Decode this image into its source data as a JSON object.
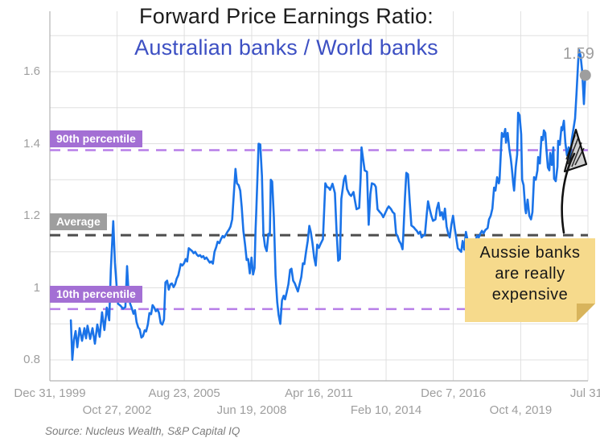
{
  "title": {
    "line1": "Forward Price Earnings Ratio:",
    "line2": "Australian banks / World banks"
  },
  "annotations": {
    "percentile_90": {
      "label": "90th percentile",
      "value": 1.382
    },
    "average": {
      "label": "Average",
      "value": 1.146
    },
    "percentile_10": {
      "label": "10th percentile",
      "value": 0.941
    },
    "last_value_label": "1.59",
    "sticky_note": {
      "lines": [
        "Aussie banks",
        "are really",
        "expensive"
      ]
    }
  },
  "source": "Source: Nucleus Wealth, S&P Capital IQ",
  "colors": {
    "line_blue": "#1a73e8",
    "subtitle_blue": "#3d50c3",
    "purple_badge": "#a36fd4",
    "purple_dash": "#b77ee8",
    "average_badge": "#9e9e9e",
    "average_dash": "#4d4d4d",
    "grid": "#e0e0e0",
    "axis": "#b3b3b3",
    "tick_text": "#9e9e9e",
    "end_dot": "#9e9e9e",
    "note_bg": "#f6da8c",
    "note_fold": "#d8b45c",
    "arrow_black": "#111111"
  },
  "chart_data": {
    "type": "line",
    "series_name": "Forward PE ratio: Australian banks / World banks",
    "legend": "none",
    "grid": "on",
    "x_axis": {
      "range_years": [
        2000.0,
        2022.58
      ],
      "gridline_years": [
        2000.0,
        2002.82,
        2005.64,
        2008.47,
        2011.29,
        2014.11,
        2016.93,
        2019.76,
        2022.58
      ],
      "ticks": [
        {
          "label": "Dec 31, 1999",
          "t": 2000.0,
          "row": 1
        },
        {
          "label": "Oct 27, 2002",
          "t": 2002.82,
          "row": 2
        },
        {
          "label": "Aug 23, 2005",
          "t": 2005.64,
          "row": 1
        },
        {
          "label": "Jun 19, 2008",
          "t": 2008.47,
          "row": 2
        },
        {
          "label": "Apr 16, 2011",
          "t": 2011.29,
          "row": 1
        },
        {
          "label": "Feb 10, 2014",
          "t": 2014.11,
          "row": 2
        },
        {
          "label": "Dec 7, 2016",
          "t": 2016.93,
          "row": 1
        },
        {
          "label": "Oct 4, 2019",
          "t": 2019.76,
          "row": 2
        },
        {
          "label": "Jul 31,",
          "t": 2022.58,
          "row": 1
        }
      ]
    },
    "y_axis": {
      "ticks": [
        {
          "label": "1.6",
          "v": 1.6
        },
        {
          "label": "1.4",
          "v": 1.4
        },
        {
          "label": "1.2",
          "v": 1.2
        },
        {
          "label": "1",
          "v": 1.0
        },
        {
          "label": "0.8",
          "v": 0.8
        }
      ],
      "gridline_values": [
        0.8,
        0.9,
        1.0,
        1.1,
        1.2,
        1.3,
        1.4,
        1.5,
        1.6,
        1.7
      ],
      "range": [
        0.8,
        1.7
      ]
    },
    "ref_lines": [
      {
        "name": "percentile-90",
        "value": 1.382,
        "color": "#b77ee8",
        "width": 2.5
      },
      {
        "name": "average",
        "value": 1.146,
        "color": "#4d4d4d",
        "width": 3
      },
      {
        "name": "percentile-10",
        "value": 0.941,
        "color": "#b77ee8",
        "width": 2.5
      }
    ],
    "end_dot": {
      "t": 2022.47,
      "v": 1.59
    },
    "points": [
      [
        2000.88,
        0.91
      ],
      [
        2000.94,
        0.8
      ],
      [
        2001.01,
        0.855
      ],
      [
        2001.08,
        0.88
      ],
      [
        2001.15,
        0.835
      ],
      [
        2001.25,
        0.888
      ],
      [
        2001.35,
        0.853
      ],
      [
        2001.45,
        0.888
      ],
      [
        2001.52,
        0.86
      ],
      [
        2001.58,
        0.895
      ],
      [
        2001.69,
        0.858
      ],
      [
        2001.79,
        0.888
      ],
      [
        2001.89,
        0.845
      ],
      [
        2001.99,
        0.898
      ],
      [
        2002.09,
        0.864
      ],
      [
        2002.19,
        0.932
      ],
      [
        2002.29,
        0.883
      ],
      [
        2002.39,
        0.945
      ],
      [
        2002.49,
        0.91
      ],
      [
        2002.56,
        1.05
      ],
      [
        2002.66,
        1.185
      ],
      [
        2002.73,
        1.07
      ],
      [
        2002.8,
        1.005
      ],
      [
        2002.86,
        0.956
      ],
      [
        2002.97,
        0.95
      ],
      [
        2003.07,
        0.942
      ],
      [
        2003.17,
        0.947
      ],
      [
        2003.24,
        1.06
      ],
      [
        2003.3,
        0.988
      ],
      [
        2003.37,
        0.956
      ],
      [
        2003.44,
        0.943
      ],
      [
        2003.51,
        0.928
      ],
      [
        2003.57,
        0.938
      ],
      [
        2003.64,
        0.905
      ],
      [
        2003.71,
        0.89
      ],
      [
        2003.77,
        0.885
      ],
      [
        2003.84,
        0.862
      ],
      [
        2003.91,
        0.866
      ],
      [
        2003.98,
        0.882
      ],
      [
        2004.04,
        0.879
      ],
      [
        2004.11,
        0.898
      ],
      [
        2004.18,
        0.93
      ],
      [
        2004.25,
        0.927
      ],
      [
        2004.31,
        0.952
      ],
      [
        2004.38,
        0.945
      ],
      [
        2004.45,
        0.935
      ],
      [
        2004.52,
        0.94
      ],
      [
        2004.58,
        0.93
      ],
      [
        2004.65,
        0.902
      ],
      [
        2004.72,
        0.898
      ],
      [
        2004.79,
        0.912
      ],
      [
        2004.85,
        1.015
      ],
      [
        2004.92,
        1.02
      ],
      [
        2004.99,
        0.995
      ],
      [
        2005.06,
        1.01
      ],
      [
        2005.12,
        1.012
      ],
      [
        2005.19,
        1.002
      ],
      [
        2005.26,
        1.01
      ],
      [
        2005.32,
        1.025
      ],
      [
        2005.39,
        1.035
      ],
      [
        2005.49,
        1.066
      ],
      [
        2005.56,
        1.062
      ],
      [
        2005.63,
        1.068
      ],
      [
        2005.7,
        1.08
      ],
      [
        2005.76,
        1.073
      ],
      [
        2005.83,
        1.11
      ],
      [
        2005.9,
        1.106
      ],
      [
        2005.97,
        1.102
      ],
      [
        2006.03,
        1.096
      ],
      [
        2006.1,
        1.1
      ],
      [
        2006.17,
        1.092
      ],
      [
        2006.23,
        1.088
      ],
      [
        2006.3,
        1.091
      ],
      [
        2006.37,
        1.085
      ],
      [
        2006.44,
        1.088
      ],
      [
        2006.5,
        1.08
      ],
      [
        2006.57,
        1.084
      ],
      [
        2006.64,
        1.077
      ],
      [
        2006.71,
        1.07
      ],
      [
        2006.77,
        1.073
      ],
      [
        2006.84,
        1.067
      ],
      [
        2006.91,
        1.1
      ],
      [
        2006.98,
        1.113
      ],
      [
        2007.04,
        1.128
      ],
      [
        2007.11,
        1.124
      ],
      [
        2007.18,
        1.135
      ],
      [
        2007.25,
        1.144
      ],
      [
        2007.31,
        1.14
      ],
      [
        2007.38,
        1.147
      ],
      [
        2007.45,
        1.155
      ],
      [
        2007.52,
        1.162
      ],
      [
        2007.58,
        1.17
      ],
      [
        2007.65,
        1.19
      ],
      [
        2007.72,
        1.26
      ],
      [
        2007.79,
        1.33
      ],
      [
        2007.85,
        1.29
      ],
      [
        2007.92,
        1.285
      ],
      [
        2007.99,
        1.27
      ],
      [
        2008.05,
        1.225
      ],
      [
        2008.12,
        1.158
      ],
      [
        2008.19,
        1.12
      ],
      [
        2008.26,
        1.077
      ],
      [
        2008.32,
        1.08
      ],
      [
        2008.39,
        1.04
      ],
      [
        2008.46,
        1.084
      ],
      [
        2008.53,
        1.037
      ],
      [
        2008.59,
        1.055
      ],
      [
        2008.63,
        1.158
      ],
      [
        2008.66,
        1.21
      ],
      [
        2008.73,
        1.345
      ],
      [
        2008.76,
        1.4
      ],
      [
        2008.83,
        1.398
      ],
      [
        2008.9,
        1.31
      ],
      [
        2008.96,
        1.15
      ],
      [
        2009.03,
        1.115
      ],
      [
        2009.1,
        1.102
      ],
      [
        2009.17,
        1.15
      ],
      [
        2009.23,
        1.146
      ],
      [
        2009.27,
        1.3
      ],
      [
        2009.33,
        1.295
      ],
      [
        2009.4,
        1.196
      ],
      [
        2009.47,
        1.035
      ],
      [
        2009.54,
        0.96
      ],
      [
        2009.6,
        0.925
      ],
      [
        2009.67,
        0.9
      ],
      [
        2009.74,
        0.965
      ],
      [
        2009.81,
        0.978
      ],
      [
        2009.87,
        0.968
      ],
      [
        2009.94,
        0.988
      ],
      [
        2010.01,
        1.01
      ],
      [
        2010.08,
        1.05
      ],
      [
        2010.14,
        1.053
      ],
      [
        2010.21,
        1.02
      ],
      [
        2010.28,
        1.012
      ],
      [
        2010.35,
        1.0
      ],
      [
        2010.41,
        0.99
      ],
      [
        2010.48,
        1.01
      ],
      [
        2010.55,
        1.03
      ],
      [
        2010.62,
        1.068
      ],
      [
        2010.68,
        1.066
      ],
      [
        2010.75,
        1.1
      ],
      [
        2010.82,
        1.13
      ],
      [
        2010.89,
        1.172
      ],
      [
        2010.95,
        1.155
      ],
      [
        2011.02,
        1.124
      ],
      [
        2011.09,
        1.084
      ],
      [
        2011.16,
        1.062
      ],
      [
        2011.22,
        1.12
      ],
      [
        2011.29,
        1.111
      ],
      [
        2011.36,
        1.122
      ],
      [
        2011.46,
        1.135
      ],
      [
        2011.56,
        1.29
      ],
      [
        2011.63,
        1.28
      ],
      [
        2011.7,
        1.278
      ],
      [
        2011.76,
        1.272
      ],
      [
        2011.86,
        1.289
      ],
      [
        2011.96,
        1.263
      ],
      [
        2012.03,
        1.16
      ],
      [
        2012.1,
        1.075
      ],
      [
        2012.17,
        1.08
      ],
      [
        2012.23,
        1.247
      ],
      [
        2012.34,
        1.3
      ],
      [
        2012.4,
        1.311
      ],
      [
        2012.47,
        1.274
      ],
      [
        2012.57,
        1.26
      ],
      [
        2012.64,
        1.255
      ],
      [
        2012.74,
        1.266
      ],
      [
        2012.81,
        1.24
      ],
      [
        2012.87,
        1.218
      ],
      [
        2012.98,
        1.222
      ],
      [
        2013.04,
        1.3
      ],
      [
        2013.08,
        1.39
      ],
      [
        2013.14,
        1.36
      ],
      [
        2013.21,
        1.326
      ],
      [
        2013.31,
        1.322
      ],
      [
        2013.38,
        1.175
      ],
      [
        2013.45,
        1.26
      ],
      [
        2013.51,
        1.29
      ],
      [
        2013.62,
        1.287
      ],
      [
        2013.68,
        1.28
      ],
      [
        2013.75,
        1.218
      ],
      [
        2013.85,
        1.21
      ],
      [
        2013.92,
        1.205
      ],
      [
        2013.99,
        1.196
      ],
      [
        2014.09,
        1.21
      ],
      [
        2014.16,
        1.22
      ],
      [
        2014.22,
        1.226
      ],
      [
        2014.32,
        1.218
      ],
      [
        2014.39,
        1.21
      ],
      [
        2014.46,
        1.206
      ],
      [
        2014.53,
        1.15
      ],
      [
        2014.59,
        1.144
      ],
      [
        2014.66,
        1.13
      ],
      [
        2014.73,
        1.122
      ],
      [
        2014.8,
        1.107
      ],
      [
        2014.83,
        1.144
      ],
      [
        2014.9,
        1.25
      ],
      [
        2014.96,
        1.319
      ],
      [
        2015.03,
        1.315
      ],
      [
        2015.1,
        1.24
      ],
      [
        2015.17,
        1.173
      ],
      [
        2015.27,
        1.168
      ],
      [
        2015.33,
        1.163
      ],
      [
        2015.4,
        1.158
      ],
      [
        2015.47,
        1.15
      ],
      [
        2015.54,
        1.156
      ],
      [
        2015.6,
        1.14
      ],
      [
        2015.67,
        1.145
      ],
      [
        2015.74,
        1.147
      ],
      [
        2015.81,
        1.2
      ],
      [
        2015.87,
        1.24
      ],
      [
        2015.94,
        1.218
      ],
      [
        2016.01,
        1.2
      ],
      [
        2016.08,
        1.186
      ],
      [
        2016.18,
        1.19
      ],
      [
        2016.24,
        1.22
      ],
      [
        2016.31,
        1.236
      ],
      [
        2016.38,
        1.2
      ],
      [
        2016.45,
        1.21
      ],
      [
        2016.51,
        1.19
      ],
      [
        2016.58,
        1.22
      ],
      [
        2016.65,
        1.17
      ],
      [
        2016.72,
        1.15
      ],
      [
        2016.78,
        1.14
      ],
      [
        2016.85,
        1.175
      ],
      [
        2016.92,
        1.2
      ],
      [
        2016.99,
        1.165
      ],
      [
        2017.05,
        1.14
      ],
      [
        2017.12,
        1.11
      ],
      [
        2017.19,
        1.105
      ],
      [
        2017.26,
        1.1
      ],
      [
        2017.32,
        1.13
      ],
      [
        2017.39,
        1.106
      ],
      [
        2017.46,
        1.155
      ],
      [
        2017.52,
        1.135
      ],
      [
        2017.59,
        1.1
      ],
      [
        2017.66,
        1.075
      ],
      [
        2017.73,
        1.065
      ],
      [
        2017.79,
        1.09
      ],
      [
        2017.86,
        1.13
      ],
      [
        2017.93,
        1.145
      ],
      [
        2018.0,
        1.14
      ],
      [
        2018.06,
        1.15
      ],
      [
        2018.13,
        1.158
      ],
      [
        2018.2,
        1.151
      ],
      [
        2018.27,
        1.16
      ],
      [
        2018.37,
        1.166
      ],
      [
        2018.43,
        1.19
      ],
      [
        2018.5,
        1.2
      ],
      [
        2018.57,
        1.22
      ],
      [
        2018.64,
        1.278
      ],
      [
        2018.7,
        1.27
      ],
      [
        2018.77,
        1.307
      ],
      [
        2018.84,
        1.29
      ],
      [
        2018.87,
        1.3
      ],
      [
        2018.94,
        1.397
      ],
      [
        2018.97,
        1.43
      ],
      [
        2019.04,
        1.419
      ],
      [
        2019.11,
        1.441
      ],
      [
        2019.14,
        1.403
      ],
      [
        2019.21,
        1.43
      ],
      [
        2019.28,
        1.386
      ],
      [
        2019.34,
        1.36
      ],
      [
        2019.38,
        1.336
      ],
      [
        2019.44,
        1.292
      ],
      [
        2019.48,
        1.27
      ],
      [
        2019.55,
        1.334
      ],
      [
        2019.61,
        1.37
      ],
      [
        2019.65,
        1.486
      ],
      [
        2019.71,
        1.479
      ],
      [
        2019.78,
        1.426
      ],
      [
        2019.82,
        1.3
      ],
      [
        2019.88,
        1.285
      ],
      [
        2019.95,
        1.218
      ],
      [
        2019.98,
        1.207
      ],
      [
        2020.05,
        1.245
      ],
      [
        2020.12,
        1.2
      ],
      [
        2020.19,
        1.19
      ],
      [
        2020.25,
        1.21
      ],
      [
        2020.32,
        1.307
      ],
      [
        2020.39,
        1.3
      ],
      [
        2020.46,
        1.326
      ],
      [
        2020.49,
        1.363
      ],
      [
        2020.56,
        1.345
      ],
      [
        2020.63,
        1.419
      ],
      [
        2020.69,
        1.41
      ],
      [
        2020.73,
        1.437
      ],
      [
        2020.79,
        1.43
      ],
      [
        2020.83,
        1.39
      ],
      [
        2020.9,
        1.334
      ],
      [
        2020.96,
        1.326
      ],
      [
        2021.0,
        1.374
      ],
      [
        2021.06,
        1.341
      ],
      [
        2021.13,
        1.39
      ],
      [
        2021.16,
        1.303
      ],
      [
        2021.23,
        1.296
      ],
      [
        2021.3,
        1.336
      ],
      [
        2021.33,
        1.408
      ],
      [
        2021.4,
        1.397
      ],
      [
        2021.47,
        1.446
      ],
      [
        2021.5,
        1.437
      ],
      [
        2021.57,
        1.464
      ],
      [
        2021.63,
        1.403
      ],
      [
        2021.7,
        1.368
      ],
      [
        2021.77,
        1.39
      ],
      [
        2021.83,
        1.356
      ],
      [
        2021.9,
        1.412
      ],
      [
        2021.97,
        1.44
      ],
      [
        2022.04,
        1.47
      ],
      [
        2022.1,
        1.54
      ],
      [
        2022.17,
        1.63
      ],
      [
        2022.21,
        1.66
      ],
      [
        2022.27,
        1.645
      ],
      [
        2022.34,
        1.6
      ],
      [
        2022.41,
        1.51
      ],
      [
        2022.47,
        1.59
      ]
    ]
  }
}
